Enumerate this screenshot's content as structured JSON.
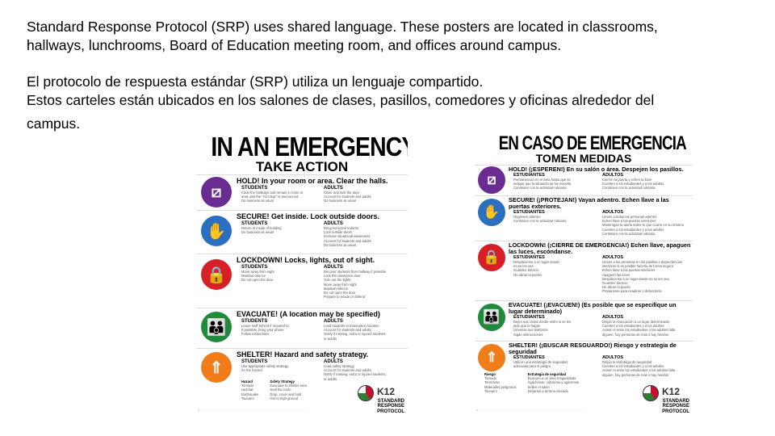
{
  "intro": {
    "en_line1": "Standard Response Protocol (SRP) uses shared language. These posters are located in classrooms,",
    "en_line2": "hallways, lunchrooms, Board of Education meeting room, and offices around campus.",
    "es_line1": "El protocolo de respuesta estándar (SRP) utiliza un lenguaje compartido.",
    "es_line2": "Estos carteles están ubicados en los salones de clases, pasillos, comedores y oficinas alrededor del",
    "es_line3": "campus."
  },
  "colors": {
    "hold": "#6a2c91",
    "secure": "#2a6fc0",
    "lockdown": "#d71f27",
    "evacuate": "#1e8a3a",
    "shelter": "#f07d1a"
  },
  "poster_en": {
    "title": "IN AN EMERGENCY",
    "subtitle": "TAKE ACTION",
    "students_label": "STUDENTS",
    "adults_label": "ADULTS",
    "sections": [
      {
        "key": "hold",
        "icon": "hold-door-icon",
        "heading": "HOLD! In your room or area. Clear the halls.",
        "students": [
          "Clear the hallways and remain in room or",
          "area until the \"All Clear\" is announced",
          "Do business as usual"
        ],
        "adults": [
          "Close and lock the door",
          "Account for students and adults",
          "Do business as usual"
        ]
      },
      {
        "key": "secure",
        "icon": "secure-hands-icon",
        "heading": "SECURE! Get inside. Lock outside doors.",
        "students": [
          "Return to inside of building",
          "Do business as usual"
        ],
        "adults": [
          "Bring everyone indoors",
          "Lock outside doors",
          "Increase situational awareness",
          "Account for students and adults",
          "Do business as usual"
        ]
      },
      {
        "key": "lockdown",
        "icon": "lockdown-padlock-icon",
        "heading": "LOCKDOWN! Locks, lights, out of sight.",
        "students": [
          "Move away from sight",
          "Maintain silence",
          "Do not open the door"
        ],
        "adults": [
          "Recover students from hallway if possible",
          "Lock the classroom door",
          "Turn out the lights",
          "Move away from sight",
          "Maintain silence",
          "Do not open the door",
          "Prepare to evade or defend"
        ]
      },
      {
        "key": "evacuate",
        "icon": "evacuate-people-icon",
        "heading": "EVACUATE! (A location may be specified)",
        "students": [
          "Leave stuff behind if required to",
          "If possible, bring your phone",
          "Follow instructions"
        ],
        "adults": [
          "Lead students to Evacuation location",
          "Account for students and adults",
          "Notify if missing, extra or injured students",
          "or adults"
        ]
      },
      {
        "key": "shelter",
        "icon": "shelter-person-icon",
        "heading": "SHELTER! Hazard and safety strategy.",
        "students": [
          "Use appropriate safety strategy",
          "for the hazard"
        ],
        "adults": [
          "Lead safety strategy",
          "Account for students and adults",
          "Notify if missing, extra or injured students,",
          "or adults"
        ],
        "hazard_label": "Hazard",
        "strategy_label": "Safety Strategy",
        "hazards": [
          "Tornado",
          "Hazmat",
          "Earthquake",
          "Tsunami"
        ],
        "strategies": [
          "Evacuate to shelter area",
          "Seal the room",
          "Drop, cover and hold",
          "Get to high ground"
        ]
      }
    ],
    "logo_text": "K12",
    "logo_sub": "STANDARD RESPONSE PROTOCOL"
  },
  "poster_es": {
    "title": "EN CASO DE EMERGENCIA",
    "subtitle": "TOMEN MEDIDAS",
    "students_label": "ESTUDIANTES",
    "adults_label": "ADULTOS",
    "sections": [
      {
        "key": "hold",
        "icon": "hold-door-icon",
        "heading": "HOLD! (¡ESPEREN!) En su salón o área. Despejen los pasillos.",
        "students": [
          "Permanezcan en el área hasta que se",
          "indique que la situación se ha resuelto",
          "Continúen con la actividad rutinaria"
        ],
        "adults": [
          "Cierren la puerta y echen la llave",
          "Cuenten a los estudiantes y a los adultos",
          "Continúen con la actividad rutinaria"
        ]
      },
      {
        "key": "secure",
        "icon": "secure-hands-icon",
        "heading": "SECURE! (¡PROTEJAN!) Vayan adentro. Echen llave a las puertas exteriores.",
        "students": [
          "Regresen adentro",
          "Continúen con la actividad rutinaria"
        ],
        "adults": [
          "Lleven a todas las personas adentro",
          "Echen llave a las puertas exteriores",
          "Mantengan la alerta sobre lo que ocurre en su entorno",
          "Cuenten a los estudiantes y a los adultos",
          "Continúen con la actividad rutinaria"
        ]
      },
      {
        "key": "lockdown",
        "icon": "lockdown-padlock-icon",
        "heading": "LOCKDOWN! (¡CIERRE DE EMERGENCIA!) Echen llave, apaguen las luces, escóndanse.",
        "students": [
          "Desplácense a un lugar donde",
          "no se les vea",
          "Guarden silencio",
          "No abran la puerta"
        ],
        "adults": [
          "Lleven a las personas en los pasillos a dependencias",
          "interiores si es posible hacerlo de forma segura",
          "Echen llave a las puertas interiores",
          "Apaguen las luces",
          "Desplácense a un lugar donde no se les vea",
          "Guarden silencio",
          "No abran la puerta",
          "Prepárense para evadirse o defenderse"
        ]
      },
      {
        "key": "evacuate",
        "icon": "evacuate-people-icon",
        "heading": "EVACUATE! (¡EVACUEN!) (Es posible que se especifique un lugar determinado)",
        "students": [
          "Dejen sus cosas donde estén si se les",
          "pide que lo hagan",
          "Llévense sus teléfonos",
          "Sigan instrucciones"
        ],
        "adults": [
          "Dirijan la evacuación a un lugar determinado",
          "Cuenten a los estudiantes y a los adultos",
          "Avisen si entre los estudiantes o los adultos falta",
          "alguien, hay personas de más o hay heridos"
        ]
      },
      {
        "key": "shelter",
        "icon": "shelter-person-icon",
        "heading": "SHELTER! (¡BUSCAR RESGUARDO!) Riesgo y estrategia de seguridad",
        "students": [
          "Utilicen una estrategia de seguridad",
          "adecuada para el peligro"
        ],
        "adults": [
          "Dirijan la estrategia de seguridad",
          "Cuenten a los estudiantes y a los adultos",
          "Avisen si entre los estudiantes o los adultos falta",
          "alguien, hay personas de más o hay heridos"
        ],
        "hazard_label": "Riesgo",
        "strategy_label": "Estrategia de seguridad",
        "hazards": [
          "Tornado",
          "Terremoto",
          "Materiales peligrosos",
          "Tsunami"
        ],
        "strategies": [
          "Evacuen a un área resguardada",
          "Agáchense, cúbranse y agárrense",
          "Sellen el salón",
          "Diríjanse a terreno elevado"
        ]
      }
    ],
    "logo_text": "K12",
    "logo_sub": "STANDARD RESPONSE PROTOCOL"
  }
}
